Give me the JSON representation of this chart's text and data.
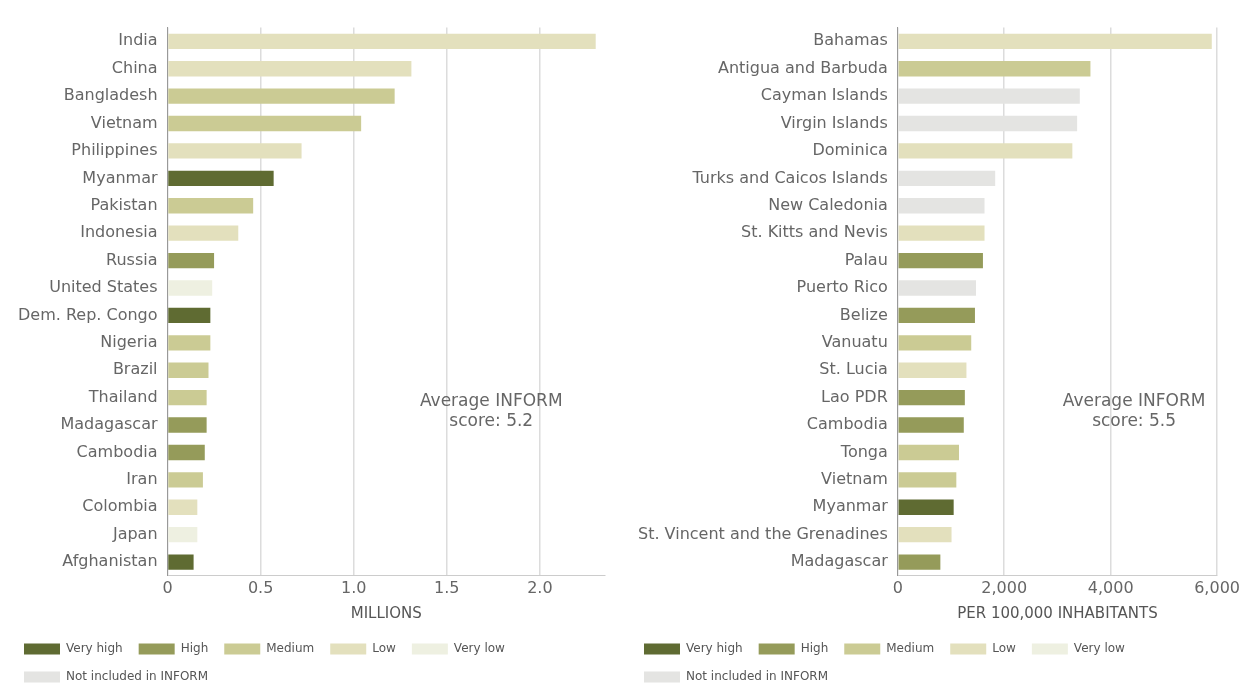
{
  "chart_data": [
    {
      "type": "bar",
      "orientation": "horizontal",
      "stacked": true,
      "xlabel": "MILLIONS",
      "categories": [
        "India",
        "China",
        "Bangladesh",
        "Vietnam",
        "Philippines",
        "Myanmar",
        "Pakistan",
        "Indonesia",
        "Russia",
        "United States",
        "Dem. Rep. Congo",
        "Nigeria",
        "Brazil",
        "Thailand",
        "Madagascar",
        "Cambodia",
        "Iran",
        "Colombia",
        "Japan",
        "Afghanistan"
      ],
      "series": [
        {
          "name": "Very high",
          "color": "#5f6b32",
          "values": [
            null,
            null,
            null,
            null,
            null,
            0.57,
            null,
            null,
            null,
            null,
            0.23,
            null,
            null,
            null,
            null,
            null,
            null,
            null,
            null,
            0.14
          ]
        },
        {
          "name": "High",
          "color": "#959b5a",
          "values": [
            null,
            null,
            null,
            null,
            null,
            null,
            null,
            null,
            0.25,
            null,
            null,
            null,
            null,
            null,
            0.21,
            0.2,
            null,
            null,
            null,
            null
          ]
        },
        {
          "name": "Medium",
          "color": "#cbcb94",
          "values": [
            null,
            null,
            1.22,
            1.04,
            null,
            null,
            0.46,
            null,
            null,
            null,
            null,
            0.23,
            0.22,
            0.21,
            null,
            null,
            0.19,
            null,
            null,
            null
          ]
        },
        {
          "name": "Low",
          "color": "#e3e0bd",
          "values": [
            2.3,
            1.31,
            null,
            null,
            0.72,
            null,
            null,
            0.38,
            null,
            null,
            null,
            null,
            null,
            null,
            null,
            null,
            null,
            0.16,
            null,
            null
          ]
        },
        {
          "name": "Very low",
          "color": "#eef0e1",
          "values": [
            null,
            null,
            null,
            null,
            null,
            null,
            null,
            null,
            null,
            0.24,
            null,
            null,
            null,
            null,
            null,
            null,
            null,
            null,
            0.16,
            null
          ]
        },
        {
          "name": "Not included in INFORM",
          "color": "#e4e4e2",
          "values": [
            null,
            null,
            null,
            null,
            null,
            null,
            null,
            null,
            null,
            null,
            null,
            null,
            null,
            null,
            null,
            null,
            null,
            null,
            null,
            null
          ]
        }
      ],
      "xlim": [
        0,
        2.35
      ],
      "xticks": [
        0,
        0.5,
        {
          "value": 1,
          "label": "1.0"
        },
        1.5,
        {
          "value": 2,
          "label": "2.0"
        }
      ],
      "grid": "x",
      "legend": "bottom",
      "annotations": [
        "Average INFORM score: 5.2"
      ]
    },
    {
      "type": "bar",
      "orientation": "horizontal",
      "stacked": true,
      "xlabel": "PER 100,000 INHABITANTS",
      "categories": [
        "Bahamas",
        "Antigua and Barbuda",
        "Cayman Islands",
        "Virgin Islands",
        "Dominica",
        "Turks and Caicos Islands",
        "New Caledonia",
        "St. Kitts and Nevis",
        "Palau",
        "Puerto Rico",
        "Belize",
        "Vanuatu",
        "St. Lucia",
        "Lao PDR",
        "Cambodia",
        "Tonga",
        "Vietnam",
        "Myanmar",
        "St. Vincent and the Grenadines",
        "Madagascar"
      ],
      "series": [
        {
          "name": "Very high",
          "color": "#5f6b32",
          "values": [
            null,
            null,
            null,
            null,
            null,
            null,
            null,
            null,
            null,
            null,
            null,
            null,
            null,
            null,
            null,
            null,
            null,
            1050,
            null,
            null
          ]
        },
        {
          "name": "High",
          "color": "#959b5a",
          "values": [
            null,
            null,
            null,
            null,
            null,
            null,
            null,
            null,
            1600,
            null,
            1450,
            null,
            null,
            1260,
            1240,
            null,
            null,
            null,
            null,
            800
          ]
        },
        {
          "name": "Medium",
          "color": "#cbcb94",
          "values": [
            null,
            3620,
            null,
            null,
            null,
            null,
            null,
            null,
            null,
            null,
            null,
            1380,
            null,
            null,
            null,
            1150,
            1100,
            null,
            null,
            null
          ]
        },
        {
          "name": "Low",
          "color": "#e3e0bd",
          "values": [
            5900,
            null,
            null,
            null,
            3280,
            null,
            null,
            1630,
            null,
            null,
            null,
            null,
            1290,
            null,
            null,
            null,
            null,
            null,
            1010,
            null
          ]
        },
        {
          "name": "Very low",
          "color": "#eef0e1",
          "values": [
            null,
            null,
            null,
            null,
            null,
            null,
            null,
            null,
            null,
            null,
            null,
            null,
            null,
            null,
            null,
            null,
            null,
            null,
            null,
            null
          ]
        },
        {
          "name": "Not included in INFORM",
          "color": "#e4e4e2",
          "values": [
            null,
            null,
            3420,
            3370,
            null,
            1830,
            1630,
            null,
            null,
            1470,
            null,
            null,
            null,
            null,
            null,
            null,
            null,
            null,
            null,
            null
          ]
        }
      ],
      "xlim": [
        0,
        6000
      ],
      "xticks": [
        0,
        {
          "value": 2000,
          "label": "2,000"
        },
        {
          "value": 4000,
          "label": "4,000"
        },
        {
          "value": 6000,
          "label": "6,000"
        }
      ],
      "grid": "x",
      "legend": "bottom",
      "annotations": [
        "Average INFORM score: 5.5"
      ]
    }
  ]
}
